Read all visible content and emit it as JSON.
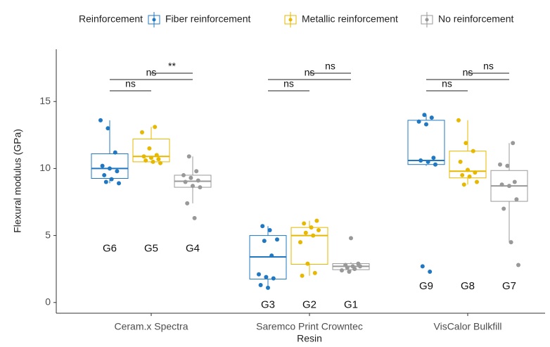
{
  "chart_data": {
    "type": "box",
    "y_label": "Flexural modulus (GPa)",
    "x_label": "Resin",
    "legend_title": "Reinforcement",
    "legend_position": "top",
    "categories": [
      "Ceram.x Spectra",
      "Saremco Print Crowntec",
      "VisCalor Bulkfill"
    ],
    "ylim": [
      -0.8,
      18.9
    ],
    "yticks": [
      0,
      5,
      10,
      15
    ],
    "series": [
      {
        "name": "Fiber reinforcement",
        "color": "#1f78c1",
        "boxes": [
          {
            "min": 8.9,
            "q1": 9.26,
            "median": 10.0,
            "q3": 11.1,
            "max": 13.6,
            "points": [
              13.6,
              13.0,
              11.2,
              10.2,
              10.0,
              9.8,
              9.5,
              9.2,
              8.9,
              9.0
            ]
          },
          {
            "min": 1.1,
            "q1": 1.75,
            "median": 3.4,
            "q3": 5.0,
            "max": 5.7,
            "points": [
              5.7,
              5.4,
              4.7,
              4.6,
              3.5,
              2.1,
              1.9,
              1.8,
              1.3,
              1.1
            ]
          },
          {
            "min": 10.2,
            "q1": 10.3,
            "median": 10.6,
            "q3": 13.6,
            "max": 14.0,
            "points": [
              14.0,
              13.8,
              13.5,
              13.3,
              10.8,
              10.6,
              10.5,
              10.3,
              2.7,
              2.3
            ]
          }
        ]
      },
      {
        "name": "Metallic reinforcement",
        "color": "#e7b800",
        "boxes": [
          {
            "min": 10.4,
            "q1": 10.5,
            "median": 10.9,
            "q3": 12.2,
            "max": 13.1,
            "points": [
              13.1,
              12.7,
              11.5,
              11.0,
              10.9,
              10.8,
              10.7,
              10.6,
              10.5,
              10.4
            ]
          },
          {
            "min": 2.0,
            "q1": 2.85,
            "median": 5.0,
            "q3": 5.6,
            "max": 6.1,
            "points": [
              6.1,
              5.9,
              5.6,
              5.4,
              5.2,
              5.0,
              4.5,
              2.9,
              2.2,
              2.0
            ]
          },
          {
            "min": 8.8,
            "q1": 9.3,
            "median": 9.8,
            "q3": 11.3,
            "max": 13.6,
            "points": [
              13.6,
              11.9,
              11.3,
              10.5,
              9.9,
              9.7,
              9.5,
              9.4,
              9.0,
              8.8
            ]
          }
        ]
      },
      {
        "name": "No reinforcement",
        "color": "#999999",
        "boxes": [
          {
            "min": 7.4,
            "q1": 8.6,
            "median": 9.05,
            "q3": 9.5,
            "max": 10.9,
            "points": [
              10.9,
              9.8,
              9.5,
              9.3,
              9.1,
              9.0,
              8.7,
              8.6,
              7.4,
              6.3
            ]
          },
          {
            "min": 2.3,
            "q1": 2.45,
            "median": 2.7,
            "q3": 2.9,
            "max": 3.0,
            "points": [
              4.8,
              2.9,
              2.8,
              2.7,
              2.7,
              2.6,
              2.5,
              2.4,
              2.3
            ]
          },
          {
            "min": 4.5,
            "q1": 7.55,
            "median": 8.7,
            "q3": 9.85,
            "max": 11.9,
            "points": [
              11.9,
              10.3,
              10.2,
              9.0,
              8.8,
              8.7,
              7.7,
              7.0,
              4.5,
              2.8
            ]
          }
        ]
      }
    ],
    "group_labels": [
      [
        "G6",
        "G5",
        "G4"
      ],
      [
        "G3",
        "G2",
        "G1"
      ],
      [
        "G9",
        "G8",
        "G7"
      ]
    ],
    "comparisons": [
      [
        "ns",
        "ns",
        "**"
      ],
      [
        "ns",
        "ns",
        "ns"
      ],
      [
        "ns",
        "ns",
        "ns"
      ]
    ]
  }
}
